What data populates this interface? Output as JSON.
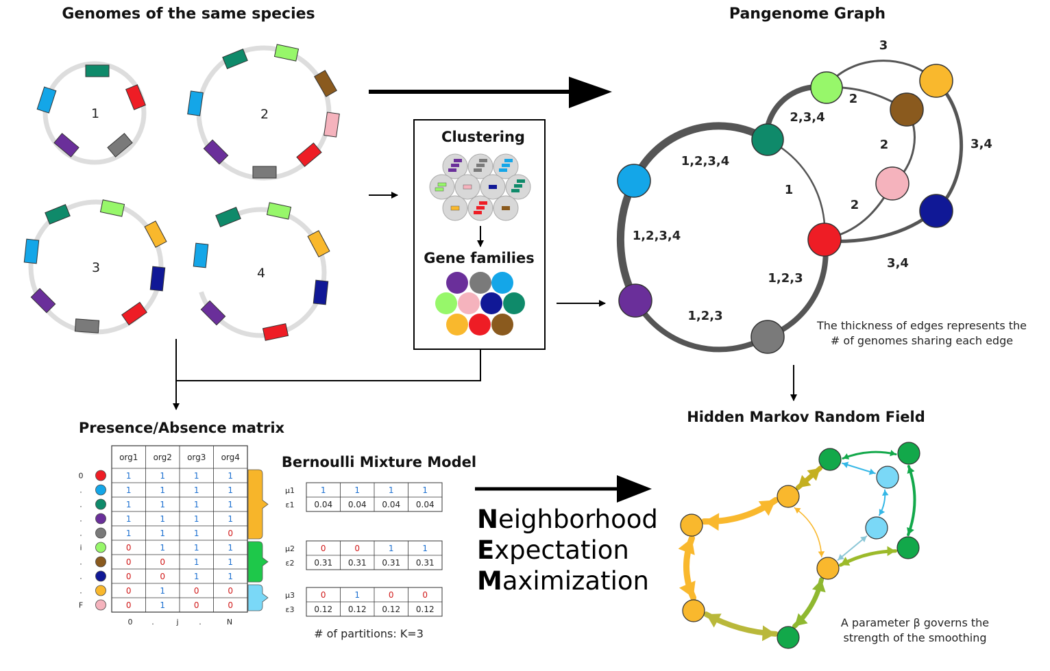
{
  "titles": {
    "genomes": "Genomes of the same species",
    "pangenome": "Pangenome Graph",
    "clustering": "Clustering",
    "gene_families": "Gene families",
    "matrix": "Presence/Absence matrix",
    "bmm": "Bernoulli Mixture Model",
    "hmrf": "Hidden Markov Random Field"
  },
  "genome_labels": [
    "1",
    "2",
    "3",
    "4"
  ],
  "gene_colors": {
    "purple": "#6a2f9a",
    "gray": "#7a7a7a",
    "sky": "#14a6e8",
    "lightgreen": "#97f76a",
    "pink": "#f5b3bd",
    "navy": "#101896",
    "teal": "#0f8a6a",
    "orange": "#f9b82d",
    "red": "#ee1d25",
    "brown": "#8a5a1e"
  },
  "graph": {
    "edge_labels": [
      "3",
      "2",
      "2,3,4",
      "2",
      "3,4",
      "1,2,3,4",
      "1",
      "2",
      "1,2,3,4",
      "3,4",
      "1,2,3",
      "1,2,3"
    ],
    "note_line1": "The thickness of edges represents the",
    "note_line2": "# of genomes sharing each edge"
  },
  "matrix": {
    "columns": [
      "org1",
      "org2",
      "org3",
      "org4"
    ],
    "row_colors": [
      "red",
      "sky",
      "teal",
      "purple",
      "gray",
      "lightgreen",
      "brown",
      "navy",
      "orange",
      "pink"
    ],
    "rows": [
      [
        1,
        1,
        1,
        1
      ],
      [
        1,
        1,
        1,
        1
      ],
      [
        1,
        1,
        1,
        1
      ],
      [
        1,
        1,
        1,
        1
      ],
      [
        1,
        1,
        1,
        0
      ],
      [
        0,
        1,
        1,
        1
      ],
      [
        0,
        0,
        1,
        1
      ],
      [
        0,
        0,
        1,
        1
      ],
      [
        0,
        1,
        0,
        0
      ],
      [
        0,
        1,
        0,
        0
      ]
    ],
    "row_axis_labels": [
      "0",
      ".",
      ".",
      ".",
      ".",
      "i",
      ".",
      ".",
      ".",
      "F"
    ],
    "col_axis_labels": [
      "0",
      ".",
      "j",
      ".",
      "N"
    ]
  },
  "bmm": {
    "partitions": [
      {
        "mu_label": "μ1",
        "eps_label": "ε1",
        "mu": [
          1,
          1,
          1,
          1
        ],
        "eps": [
          "0.04",
          "0.04",
          "0.04",
          "0.04"
        ],
        "color": "#f7b52a"
      },
      {
        "mu_label": "μ2",
        "eps_label": "ε2",
        "mu": [
          0,
          0,
          1,
          1
        ],
        "eps": [
          "0.31",
          "0.31",
          "0.31",
          "0.31"
        ],
        "color": "#1ec84a"
      },
      {
        "mu_label": "μ3",
        "eps_label": "ε3",
        "mu": [
          0,
          1,
          0,
          0
        ],
        "eps": [
          "0.12",
          "0.12",
          "0.12",
          "0.12"
        ],
        "color": "#7ad8f7"
      }
    ],
    "partitions_note": "# of partitions: K=3"
  },
  "nem": {
    "line1_initial": "N",
    "line1_rest": "eighborhood",
    "line2_initial": "E",
    "line2_rest": "xpectation",
    "line3_initial": "M",
    "line3_rest": "aximization"
  },
  "hmrf": {
    "note_line1": "A parameter β governs the",
    "note_line2": "strength of the smoothing"
  }
}
